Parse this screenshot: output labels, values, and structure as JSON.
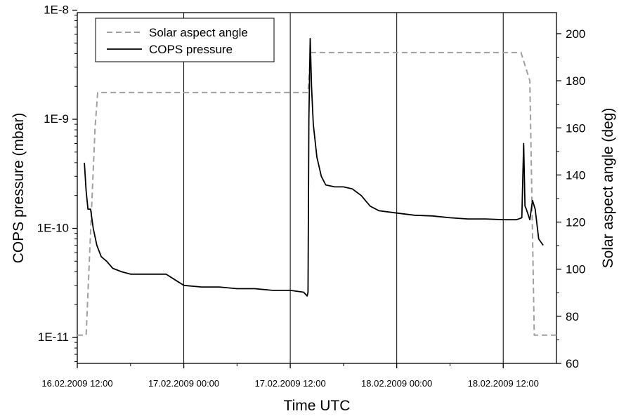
{
  "chart_data": {
    "type": "line",
    "title": "",
    "xlabel": "Time UTC",
    "ylabel_left": "COPS pressure (mbar)",
    "ylabel_right": "Solar aspect angle (deg)",
    "x_range": [
      "16.02.2009 12:00",
      "18.02.2009 12:00"
    ],
    "x_ticks": [
      "16.02.2009 12:00",
      "17.02.2009 00:00",
      "17.02.2009 12:00",
      "18.02.2009 00:00",
      "18.02.2009 12:00"
    ],
    "y_left_scale": "log",
    "y_left_range": [
      1e-11,
      1e-08
    ],
    "y_left_ticks": [
      "1E-11",
      "1E-10",
      "1E-9",
      "1E-8"
    ],
    "y_right_range": [
      60,
      210
    ],
    "y_right_ticks": [
      "60",
      "80",
      "100",
      "120",
      "140",
      "160",
      "180",
      "200"
    ],
    "vertical_gridlines": true,
    "legend_position": "top-left",
    "series": [
      {
        "name": "Solar aspect angle",
        "axis": "right",
        "style": "dashed",
        "color": "#a0a0a0",
        "x_hours": [
          0,
          1.0,
          2.0,
          2.3,
          26.0,
          26.3,
          50.0,
          51.0,
          51.5,
          54.0
        ],
        "values": [
          72,
          72,
          160,
          175,
          175,
          192,
          192,
          180,
          72,
          72
        ]
      },
      {
        "name": "COPS pressure",
        "axis": "left",
        "style": "solid",
        "color": "#000000",
        "x_hours": [
          0.8,
          1.0,
          1.2,
          1.5,
          1.8,
          2.2,
          2.7,
          3.3,
          4.0,
          5.0,
          6.0,
          8.0,
          10.0,
          12.0,
          14.0,
          16.0,
          18.0,
          20.0,
          22.0,
          24.0,
          25.5,
          25.9,
          26.0,
          26.1,
          26.25,
          26.4,
          26.6,
          27.0,
          27.5,
          28.0,
          29.0,
          30.0,
          31.0,
          32.0,
          33.0,
          34.0,
          36.0,
          38.0,
          40.0,
          42.0,
          44.0,
          46.0,
          48.0,
          49.5,
          50.1,
          50.3,
          50.45,
          50.6,
          51.0,
          51.3,
          51.6,
          52.0,
          52.5
        ],
        "values": [
          4e-10,
          2.2e-10,
          1.5e-10,
          1.5e-10,
          1e-10,
          7e-11,
          5.5e-11,
          5e-11,
          4.3e-11,
          4e-11,
          3.8e-11,
          3.8e-11,
          3.8e-11,
          3e-11,
          2.9e-11,
          2.9e-11,
          2.8e-11,
          2.8e-11,
          2.7e-11,
          2.7e-11,
          2.6e-11,
          2.4e-11,
          2.6e-11,
          1e-09,
          5.5e-09,
          2e-09,
          9e-10,
          4.5e-10,
          3e-10,
          2.5e-10,
          2.4e-10,
          2.4e-10,
          2.3e-10,
          2e-10,
          1.6e-10,
          1.45e-10,
          1.38e-10,
          1.32e-10,
          1.3e-10,
          1.25e-10,
          1.22e-10,
          1.22e-10,
          1.2e-10,
          1.2e-10,
          1.25e-10,
          6e-10,
          1.6e-10,
          1.5e-10,
          1.2e-10,
          1.8e-10,
          1.5e-10,
          8e-11,
          7e-11
        ]
      }
    ]
  }
}
